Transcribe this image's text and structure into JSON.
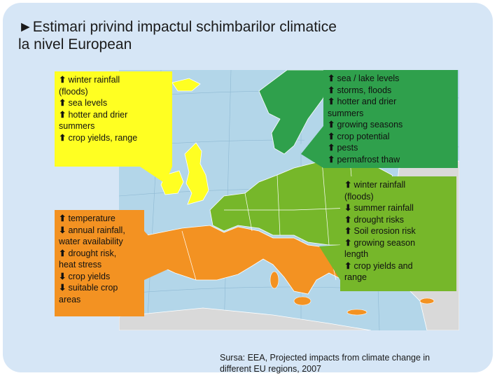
{
  "title": {
    "line1": "►Estimari privind impactul schimbarilor climatice",
    "line2": "la nivel European"
  },
  "colors": {
    "northwest": "#ffff22",
    "north": "#2fa04c",
    "central": "#76b72a",
    "south": "#f39222",
    "sea": "#b3d6e9",
    "land_outside": "#d9d9d9"
  },
  "regions": {
    "northwest": {
      "lines": [
        {
          "arrow": "🡑",
          "text": "winter rainfall"
        },
        {
          "arrow": "",
          "text": "(floods)"
        },
        {
          "arrow": "🡑",
          "text": "sea levels"
        },
        {
          "arrow": "🡑",
          "text": "hotter and drier"
        },
        {
          "arrow": "",
          "text": "summers"
        },
        {
          "arrow": "🡑",
          "text": "crop yields, range"
        }
      ]
    },
    "north": {
      "lines": [
        {
          "arrow": "🡑",
          "text": "sea / lake levels"
        },
        {
          "arrow": "🡑",
          "text": "storms, floods"
        },
        {
          "arrow": "🡑",
          "text": "hotter and drier"
        },
        {
          "arrow": "",
          "text": "summers"
        },
        {
          "arrow": "🡑",
          "text": "growing seasons"
        },
        {
          "arrow": "🡑",
          "text": "crop potential"
        },
        {
          "arrow": "🡑",
          "text": "pests"
        },
        {
          "arrow": "🡑",
          "text": "permafrost thaw"
        }
      ]
    },
    "south": {
      "lines": [
        {
          "arrow": "🡑",
          "text": "temperature"
        },
        {
          "arrow": "🡓",
          "text": "annual rainfall,"
        },
        {
          "arrow": "",
          "text": "water availability"
        },
        {
          "arrow": "🡑",
          "text": "drought risk,"
        },
        {
          "arrow": "",
          "text": "heat stress"
        },
        {
          "arrow": "🡓",
          "text": "crop yields"
        },
        {
          "arrow": "🡓",
          "text": "suitable crop"
        },
        {
          "arrow": "",
          "text": "areas"
        }
      ]
    },
    "central": {
      "lines": [
        {
          "arrow": "🡑",
          "text": "winter rainfall"
        },
        {
          "arrow": "",
          "text": "(floods)"
        },
        {
          "arrow": "🡓",
          "text": "summer rainfall"
        },
        {
          "arrow": "🡑",
          "text": "drought risks"
        },
        {
          "arrow": "🡑",
          "text": "Soil erosion risk"
        },
        {
          "arrow": "🡑",
          "text": "growing season"
        },
        {
          "arrow": "",
          "text": "length"
        },
        {
          "arrow": "🡑",
          "text": "crop yields and"
        },
        {
          "arrow": "",
          "text": "range"
        }
      ]
    }
  },
  "source": {
    "line1": "Sursa: EEA, Projected impacts from climate change in",
    "line2": "different EU regions, 2007"
  }
}
